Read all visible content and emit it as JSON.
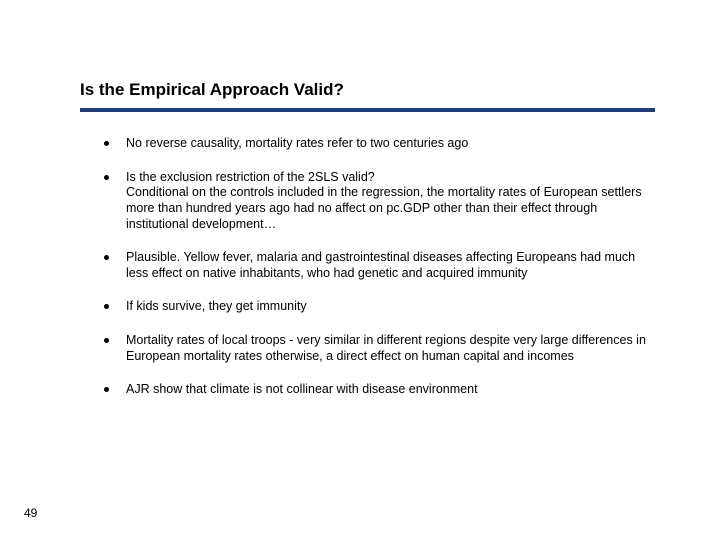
{
  "slide": {
    "title": "Is the Empirical Approach Valid?",
    "title_color": "#000000",
    "title_fontsize": 17,
    "rule_color": "#1f3e78",
    "rule_height": 4,
    "rule_width": 575,
    "background_color": "#ffffff",
    "body_fontsize": 12.5,
    "body_color": "#000000",
    "bullet_marker_color": "#000000",
    "bullets": [
      {
        "text": "No reverse causality, mortality rates refer to two centuries ago"
      },
      {
        "text": "Is the exclusion restriction of the 2SLS valid?",
        "sub": "Conditional on the controls included in the regression, the mortality rates of European settlers more than hundred years ago had no affect on pc.GDP other than their effect through institutional development…"
      },
      {
        "text": "Plausible. Yellow fever, malaria and gastrointestinal diseases affecting Europeans had much less effect on native inhabitants, who had genetic and acquired immunity"
      },
      {
        "text": "If kids survive, they get immunity"
      },
      {
        "text": "Mortality rates of local troops - very similar in different regions despite very large differences in European mortality rates otherwise, a direct effect on human capital and incomes"
      },
      {
        "text": "AJR show that climate is not collinear with disease environment"
      }
    ],
    "page_number": "49",
    "page_number_fontsize": 12
  }
}
